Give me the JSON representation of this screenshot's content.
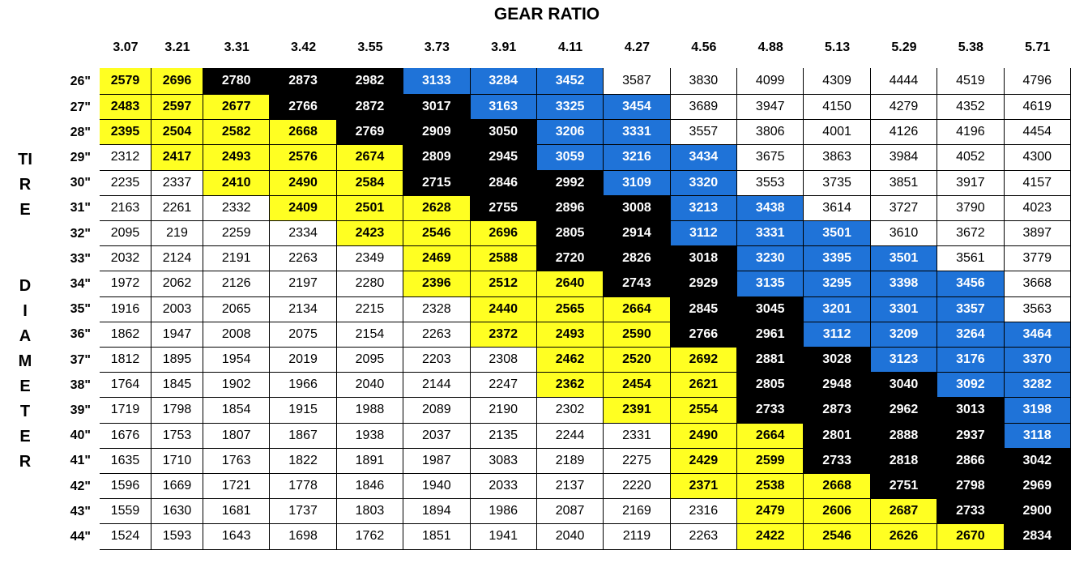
{
  "title": "GEAR RATIO",
  "side_label": [
    "TIRE",
    "DIAMETER"
  ],
  "table": {
    "columns": [
      3.07,
      3.21,
      3.31,
      3.42,
      3.55,
      3.73,
      3.91,
      4.11,
      4.27,
      4.56,
      4.88,
      5.13,
      5.29,
      5.38,
      5.71
    ],
    "row_labels": [
      "26\"",
      "27\"",
      "28\"",
      "29\"",
      "30\"",
      "31\"",
      "32\"",
      "33\"",
      "34\"",
      "35\"",
      "36\"",
      "37\"",
      "38\"",
      "39\"",
      "40\"",
      "41\"",
      "42\"",
      "43\"",
      "44\""
    ],
    "rows": [
      [
        2579,
        2696,
        2780,
        2873,
        2982,
        3133,
        3284,
        3452,
        3587,
        3830,
        4099,
        4309,
        4444,
        4519,
        4796
      ],
      [
        2483,
        2597,
        2677,
        2766,
        2872,
        3017,
        3163,
        3325,
        3454,
        3689,
        3947,
        4150,
        4279,
        4352,
        4619
      ],
      [
        2395,
        2504,
        2582,
        2668,
        2769,
        2909,
        3050,
        3206,
        3331,
        3557,
        3806,
        4001,
        4126,
        4196,
        4454
      ],
      [
        2312,
        2417,
        2493,
        2576,
        2674,
        2809,
        2945,
        3059,
        3216,
        3434,
        3675,
        3863,
        3984,
        4052,
        4300
      ],
      [
        2235,
        2337,
        2410,
        2490,
        2584,
        2715,
        2846,
        2992,
        3109,
        3320,
        3553,
        3735,
        3851,
        3917,
        4157
      ],
      [
        2163,
        2261,
        2332,
        2409,
        2501,
        2628,
        2755,
        2896,
        3008,
        3213,
        3438,
        3614,
        3727,
        3790,
        4023
      ],
      [
        2095,
        219,
        2259,
        2334,
        2423,
        2546,
        2696,
        2805,
        2914,
        3112,
        3331,
        3501,
        3610,
        3672,
        3897
      ],
      [
        2032,
        2124,
        2191,
        2263,
        2349,
        2469,
        2588,
        2720,
        2826,
        3018,
        3230,
        3395,
        3501,
        3561,
        3779
      ],
      [
        1972,
        2062,
        2126,
        2197,
        2280,
        2396,
        2512,
        2640,
        2743,
        2929,
        3135,
        3295,
        3398,
        3456,
        3668
      ],
      [
        1916,
        2003,
        2065,
        2134,
        2215,
        2328,
        2440,
        2565,
        2664,
        2845,
        3045,
        3201,
        3301,
        3357,
        3563
      ],
      [
        1862,
        1947,
        2008,
        2075,
        2154,
        2263,
        2372,
        2493,
        2590,
        2766,
        2961,
        3112,
        3209,
        3264,
        3464
      ],
      [
        1812,
        1895,
        1954,
        2019,
        2095,
        2203,
        2308,
        2462,
        2520,
        2692,
        2881,
        3028,
        3123,
        3176,
        3370
      ],
      [
        1764,
        1845,
        1902,
        1966,
        2040,
        2144,
        2247,
        2362,
        2454,
        2621,
        2805,
        2948,
        3040,
        3092,
        3282
      ],
      [
        1719,
        1798,
        1854,
        1915,
        1988,
        2089,
        2190,
        2302,
        2391,
        2554,
        2733,
        2873,
        2962,
        3013,
        3198
      ],
      [
        1676,
        1753,
        1807,
        1867,
        1938,
        2037,
        2135,
        2244,
        2331,
        2490,
        2664,
        2801,
        2888,
        2937,
        3118
      ],
      [
        1635,
        1710,
        1763,
        1822,
        1891,
        1987,
        3083,
        2189,
        2275,
        2429,
        2599,
        2733,
        2818,
        2866,
        3042
      ],
      [
        1596,
        1669,
        1721,
        1778,
        1846,
        1940,
        2033,
        2137,
        2220,
        2371,
        2538,
        2668,
        2751,
        2798,
        2969
      ],
      [
        1559,
        1630,
        1681,
        1737,
        1803,
        1894,
        1986,
        2087,
        2169,
        2316,
        2479,
        2606,
        2687,
        2733,
        2900
      ],
      [
        1524,
        1593,
        1643,
        1698,
        1762,
        1851,
        1941,
        2040,
        2119,
        2263,
        2422,
        2546,
        2626,
        2670,
        2834
      ]
    ]
  }
}
